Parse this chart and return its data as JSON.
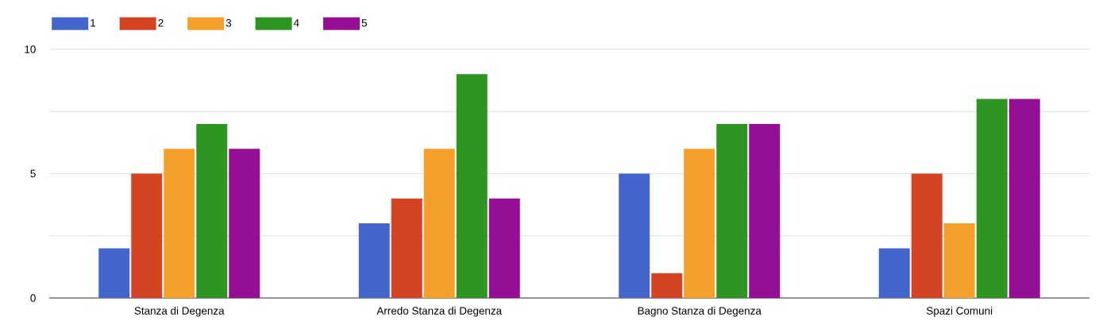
{
  "chart_data": {
    "type": "bar",
    "categories": [
      "Stanza di Degenza",
      "Arredo Stanza di Degenza",
      "Bagno Stanza di Degenza",
      "Spazi Comuni"
    ],
    "series": [
      {
        "name": "1",
        "color": "#4466cc",
        "values": [
          2,
          3,
          5,
          2
        ]
      },
      {
        "name": "2",
        "color": "#d44422",
        "values": [
          5,
          4,
          1,
          5
        ]
      },
      {
        "name": "3",
        "color": "#f5a02a",
        "values": [
          6,
          6,
          6,
          3
        ]
      },
      {
        "name": "4",
        "color": "#2e9422",
        "values": [
          7,
          9,
          7,
          8
        ]
      },
      {
        "name": "5",
        "color": "#950f95",
        "values": [
          6,
          4,
          7,
          8
        ]
      }
    ],
    "ylim": [
      0,
      10
    ],
    "yticks": [
      0,
      {
        "value": 2.5,
        "label": null
      },
      5,
      {
        "value": 7.5,
        "label": null
      },
      10
    ],
    "grid": "y",
    "legend": "top left"
  }
}
